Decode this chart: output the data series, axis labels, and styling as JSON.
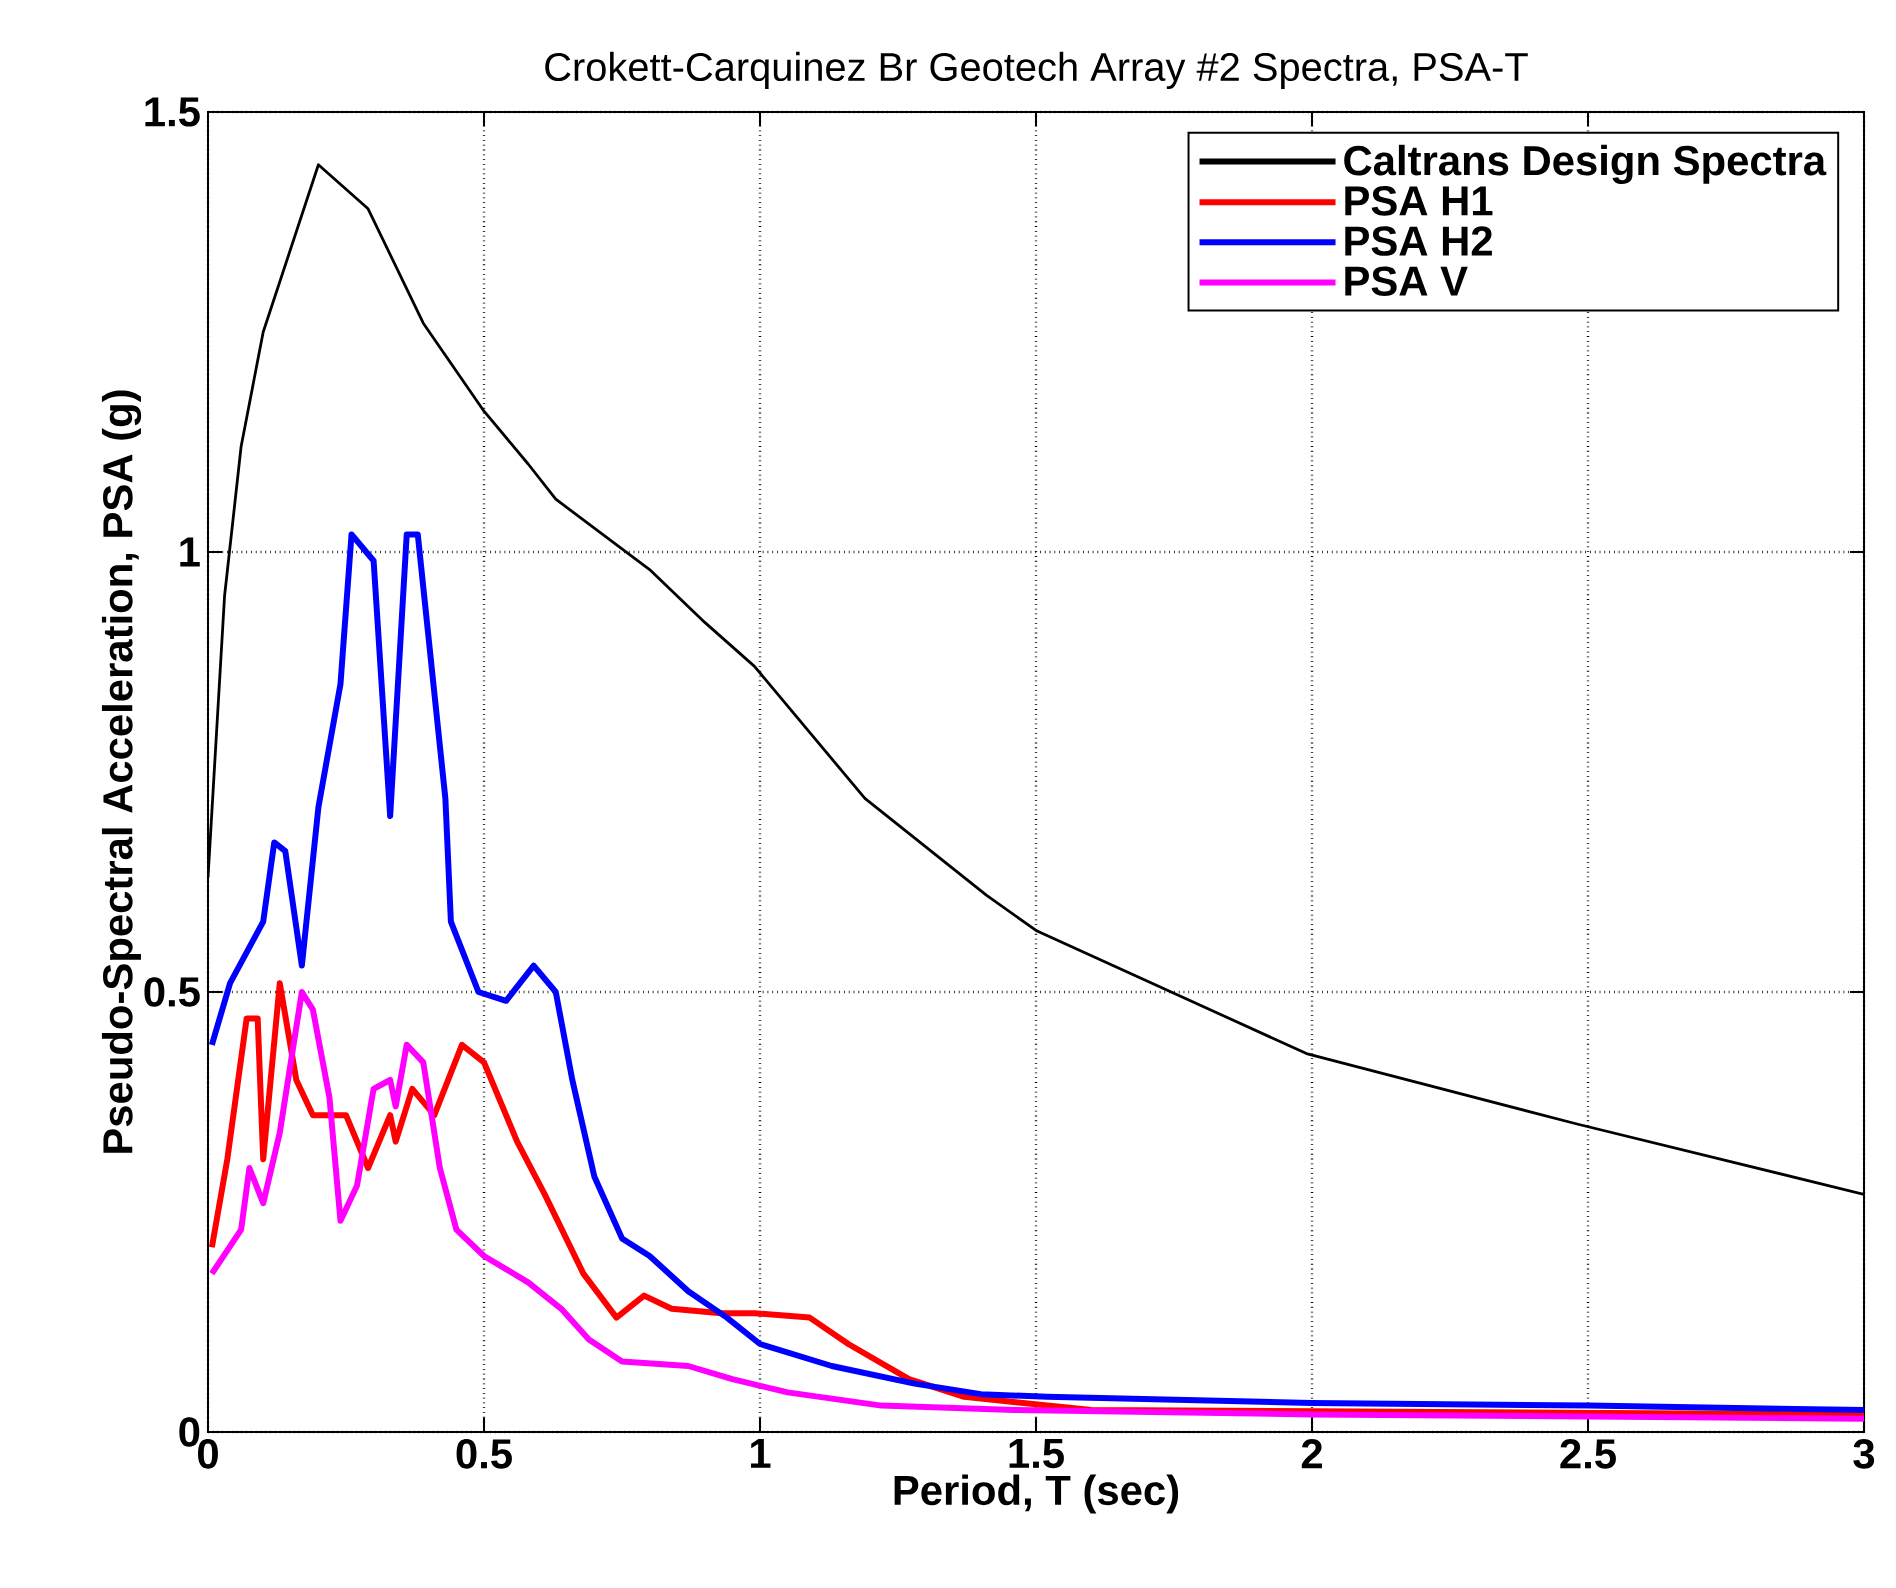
{
  "chart_data": {
    "type": "line",
    "title": "Crokett-Carquinez Br Geotech Array #2 Spectra, PSA-T",
    "xlabel": "Period, T (sec)",
    "ylabel": "Pseudo-Spectral Acceleration, PSA (g)",
    "xlim": [
      0,
      3
    ],
    "ylim": [
      0,
      1.5
    ],
    "xticks": [
      0,
      0.5,
      1,
      1.5,
      2,
      2.5,
      3
    ],
    "yticks": [
      0,
      0.5,
      1,
      1.5
    ],
    "grid": true,
    "legend": "top right",
    "line_style": "solid",
    "marker": "none",
    "series": [
      {
        "name": "Caltrans Design Spectra",
        "color": "#000000",
        "x": [
          0,
          0.03,
          0.06,
          0.1,
          0.2,
          0.29,
          0.39,
          0.5,
          0.58,
          0.63,
          0.8,
          0.9,
          0.99,
          1.19,
          1.41,
          1.5,
          1.99,
          2.48,
          3
        ],
        "values": [
          0.63,
          0.95,
          1.12,
          1.25,
          1.44,
          1.39,
          1.26,
          1.16,
          1.1,
          1.06,
          0.98,
          0.92,
          0.87,
          0.72,
          0.61,
          0.57,
          0.43,
          0.35,
          0.27
        ]
      },
      {
        "name": "PSA H1",
        "color": "#ff0000",
        "x": [
          0.007,
          0.035,
          0.07,
          0.09,
          0.1,
          0.13,
          0.16,
          0.19,
          0.25,
          0.29,
          0.33,
          0.34,
          0.37,
          0.41,
          0.46,
          0.5,
          0.56,
          0.61,
          0.68,
          0.74,
          0.79,
          0.84,
          0.93,
          0.99,
          1.09,
          1.16,
          1.27,
          1.37,
          1.6,
          3
        ],
        "values": [
          0.21,
          0.31,
          0.47,
          0.47,
          0.31,
          0.51,
          0.4,
          0.36,
          0.36,
          0.3,
          0.36,
          0.33,
          0.39,
          0.36,
          0.44,
          0.42,
          0.33,
          0.27,
          0.18,
          0.13,
          0.155,
          0.14,
          0.135,
          0.135,
          0.13,
          0.1,
          0.06,
          0.04,
          0.025,
          0.02
        ]
      },
      {
        "name": "PSA H2",
        "color": "#0000ff",
        "x": [
          0.007,
          0.04,
          0.1,
          0.12,
          0.14,
          0.17,
          0.2,
          0.24,
          0.26,
          0.3,
          0.33,
          0.36,
          0.38,
          0.43,
          0.44,
          0.49,
          0.54,
          0.59,
          0.63,
          0.66,
          0.7,
          0.75,
          0.8,
          0.87,
          0.94,
          1.0,
          1.13,
          1.28,
          1.4,
          1.52,
          2,
          2.5,
          3
        ],
        "values": [
          0.44,
          0.51,
          0.58,
          0.67,
          0.66,
          0.53,
          0.71,
          0.85,
          1.02,
          0.99,
          0.7,
          1.02,
          1.02,
          0.72,
          0.58,
          0.5,
          0.49,
          0.53,
          0.5,
          0.4,
          0.29,
          0.22,
          0.2,
          0.16,
          0.13,
          0.1,
          0.075,
          0.055,
          0.043,
          0.04,
          0.033,
          0.03,
          0.025
        ]
      },
      {
        "name": "PSA V",
        "color": "#ff00ff",
        "x": [
          0.007,
          0.06,
          0.075,
          0.1,
          0.13,
          0.17,
          0.19,
          0.22,
          0.24,
          0.27,
          0.3,
          0.33,
          0.34,
          0.36,
          0.39,
          0.42,
          0.45,
          0.5,
          0.58,
          0.64,
          0.69,
          0.75,
          0.87,
          0.95,
          1.05,
          1.22,
          1.46,
          2,
          3
        ],
        "values": [
          0.18,
          0.23,
          0.3,
          0.26,
          0.34,
          0.5,
          0.48,
          0.38,
          0.24,
          0.28,
          0.39,
          0.4,
          0.37,
          0.44,
          0.42,
          0.3,
          0.23,
          0.2,
          0.17,
          0.14,
          0.105,
          0.08,
          0.075,
          0.06,
          0.045,
          0.03,
          0.025,
          0.02,
          0.015
        ]
      }
    ]
  }
}
